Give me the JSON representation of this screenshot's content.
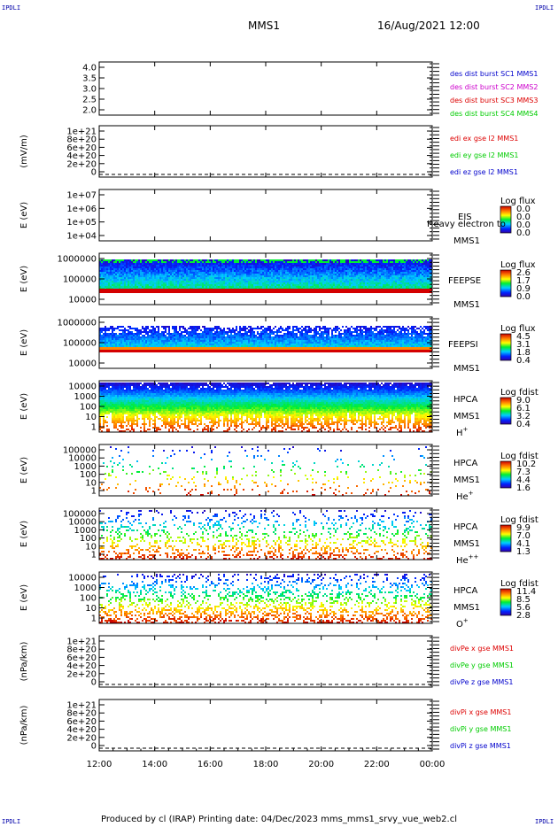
{
  "corner_label": "IPDLI",
  "header": {
    "spacecraft": "MMS1",
    "datetime": "16/Aug/2021 12:00"
  },
  "footer": {
    "text": "Produced by cl (IRAP)   Printing date: 04/Dec/2023   mms_mms1_srvy_vue_web2.cl"
  },
  "colors": {
    "blue": "#0000cc",
    "magenta": "#cc00cc",
    "red": "#dd0000",
    "green": "#00cc00"
  },
  "chart_data": {
    "type": "multi-panel time series / spectrogram stack",
    "x_ticks": [
      "12:00",
      "14:00",
      "16:00",
      "18:00",
      "20:00",
      "22:00",
      "00:00"
    ],
    "panels": [
      {
        "id": "sep",
        "kind": "line",
        "ylabel": "",
        "ylim": [
          1.8,
          4.2
        ],
        "yticks": [
          "4.0",
          "3.5",
          "3.0",
          "2.5",
          "2.0"
        ],
        "legend": [
          {
            "text": "des dist burst SC1 MMS1",
            "color": "#0000cc"
          },
          {
            "text": "des dist burst SC2 MMS2",
            "color": "#cc00cc"
          },
          {
            "text": "des dist burst SC3 MMS3",
            "color": "#dd0000"
          },
          {
            "text": "des dist burst SC4 MMS4",
            "color": "#00cc00"
          }
        ]
      },
      {
        "id": "edi",
        "kind": "line",
        "ylabel": "(mV/m)",
        "yticks": [
          "1e+21",
          "8e+20",
          "6e+20",
          "4e+20",
          "2e+20",
          "0"
        ],
        "legend": [
          {
            "text": "edi ex gse l2 MMS1",
            "color": "#dd0000"
          },
          {
            "text": "edi ey gse l2 MMS1",
            "color": "#00cc00"
          },
          {
            "text": "edi ez gse l2 MMS1",
            "color": "#0000cc"
          }
        ]
      },
      {
        "id": "eis",
        "kind": "spectrogram",
        "ylabel": "E (eV)",
        "yticks": [
          "1e+07",
          "1e+06",
          "1e+05",
          "1e+04"
        ],
        "side_labels": [
          "EIS",
          "Heavy electron to",
          "MMS1"
        ],
        "colorbar": {
          "title": "Log flux",
          "values": [
            "0.0",
            "0.0",
            "0.0",
            "0.0"
          ]
        }
      },
      {
        "id": "feepse",
        "kind": "spectrogram",
        "ylabel": "E (eV)",
        "yticks": [
          "1000000",
          "100000",
          "10000"
        ],
        "side_labels": [
          "FEEPSE",
          "MMS1"
        ],
        "colorbar": {
          "title": "Log flux",
          "values": [
            "2.6",
            "1.7",
            "0.9",
            "0.0"
          ]
        }
      },
      {
        "id": "feepsi",
        "kind": "spectrogram",
        "ylabel": "E (eV)",
        "yticks": [
          "1000000",
          "100000",
          "10000"
        ],
        "side_labels": [
          "FEEPSI",
          "MMS1"
        ],
        "colorbar": {
          "title": "Log flux",
          "values": [
            "4.5",
            "3.1",
            "1.8",
            "0.4"
          ]
        }
      },
      {
        "id": "hpca_h",
        "kind": "spectrogram",
        "ylabel": "E (eV)",
        "yticks": [
          "10000",
          "1000",
          "100",
          "10",
          "1"
        ],
        "side_labels": [
          "HPCA",
          "MMS1",
          "H"
        ],
        "species_sup": "+",
        "colorbar": {
          "title": "Log fdist",
          "values": [
            "9.0",
            "6.1",
            "3.2",
            "0.4"
          ]
        }
      },
      {
        "id": "hpca_he",
        "kind": "spectrogram",
        "ylabel": "E (eV)",
        "yticks": [
          "100000",
          "10000",
          "1000",
          "100",
          "10",
          "1"
        ],
        "side_labels": [
          "HPCA",
          "MMS1",
          "He"
        ],
        "species_sup": "+",
        "colorbar": {
          "title": "Log fdist",
          "values": [
            "10.2",
            "7.3",
            "4.4",
            "1.6"
          ]
        }
      },
      {
        "id": "hpca_hepp",
        "kind": "spectrogram",
        "ylabel": "E (eV)",
        "yticks": [
          "100000",
          "10000",
          "1000",
          "100",
          "10",
          "1"
        ],
        "side_labels": [
          "HPCA",
          "MMS1",
          "He"
        ],
        "species_sup": "++",
        "colorbar": {
          "title": "Log fdist",
          "values": [
            "9.9",
            "7.0",
            "4.1",
            "1.3"
          ]
        }
      },
      {
        "id": "hpca_o",
        "kind": "spectrogram",
        "ylabel": "E (eV)",
        "yticks": [
          "10000",
          "1000",
          "100",
          "10",
          "1"
        ],
        "side_labels": [
          "HPCA",
          "MMS1",
          "O"
        ],
        "species_sup": "+",
        "colorbar": {
          "title": "Log fdist",
          "values": [
            "11.4",
            "8.5",
            "5.6",
            "2.8"
          ]
        }
      },
      {
        "id": "divpe",
        "kind": "line",
        "ylabel": "(nPa/km)",
        "yticks": [
          "1e+21",
          "8e+20",
          "6e+20",
          "4e+20",
          "2e+20",
          "0"
        ],
        "legend": [
          {
            "text": "divPe x gse MMS1",
            "color": "#dd0000"
          },
          {
            "text": "divPe y gse MMS1",
            "color": "#00cc00"
          },
          {
            "text": "divPe z gse MMS1",
            "color": "#0000cc"
          }
        ]
      },
      {
        "id": "divpi",
        "kind": "line",
        "ylabel": "(nPa/km)",
        "yticks": [
          "1e+21",
          "8e+20",
          "6e+20",
          "4e+20",
          "2e+20",
          "0"
        ],
        "legend": [
          {
            "text": "divPi x gse MMS1",
            "color": "#dd0000"
          },
          {
            "text": "divPi y gse MMS1",
            "color": "#00cc00"
          },
          {
            "text": "divPi z gse MMS1",
            "color": "#0000cc"
          }
        ]
      }
    ]
  }
}
